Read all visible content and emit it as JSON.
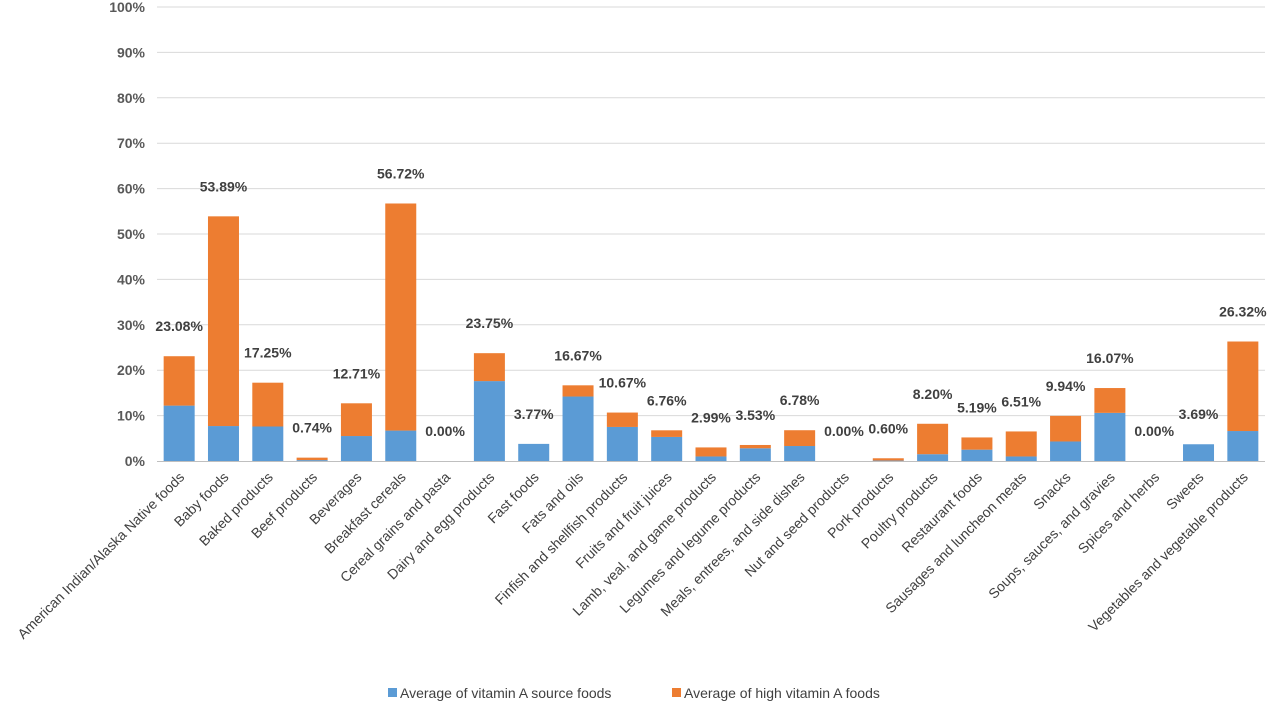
{
  "chart_data": {
    "type": "bar",
    "stacked": true,
    "title": "",
    "xlabel": "",
    "ylabel": "",
    "ylim": [
      0,
      100
    ],
    "yticks": [
      "0%",
      "10%",
      "20%",
      "30%",
      "40%",
      "50%",
      "60%",
      "70%",
      "80%",
      "90%",
      "100%"
    ],
    "grid": true,
    "legend_position": "bottom",
    "categories": [
      "American Indian/Alaska Native foods",
      "Baby foods",
      "Baked products",
      "Beef products",
      "Beverages",
      "Breakfast cereals",
      "Cereal grains and pasta",
      "Dairy and egg products",
      "Fast foods",
      "Fats and oils",
      "Finfish and shellfish products",
      "Fruits and fruit juices",
      "Lamb, veal, and game products",
      "Legumes and legume products",
      "Meals, entrees, and side dishes",
      "Nut and seed products",
      "Pork products",
      "Poultry products",
      "Restaurant foods",
      "Sausages and luncheon meats",
      "Snacks",
      "Soups, sauces, and gravies",
      "Spices and herbs",
      "Sweets",
      "Vegetables and vegetable products"
    ],
    "series": [
      {
        "name": "Average of vitamin A source foods",
        "color": "#5B9BD5",
        "values": [
          12.2,
          7.7,
          7.6,
          0.2,
          5.5,
          6.7,
          0,
          17.6,
          3.77,
          14.2,
          7.5,
          5.3,
          1.0,
          2.8,
          3.3,
          0,
          0.1,
          1.5,
          2.5,
          1.0,
          4.3,
          10.6,
          0,
          3.69,
          6.6
        ]
      },
      {
        "name": "Average of high vitamin A foods",
        "color": "#ED7D31",
        "values": [
          10.88,
          46.19,
          9.65,
          0.54,
          7.21,
          50.02,
          0,
          6.15,
          0,
          2.47,
          3.17,
          1.46,
          1.99,
          0.73,
          3.48,
          0,
          0.5,
          6.7,
          2.69,
          5.51,
          5.64,
          5.47,
          0,
          0,
          19.72
        ]
      }
    ],
    "totals_labels": [
      "23.08%",
      "53.89%",
      "17.25%",
      "0.74%",
      "12.71%",
      "56.72%",
      "0.00%",
      "23.75%",
      "3.77%",
      "16.67%",
      "10.67%",
      "6.76%",
      "2.99%",
      "3.53%",
      "6.78%",
      "0.00%",
      "0.60%",
      "8.20%",
      "5.19%",
      "6.51%",
      "9.94%",
      "16.07%",
      "0.00%",
      "3.69%",
      "26.32%"
    ]
  }
}
